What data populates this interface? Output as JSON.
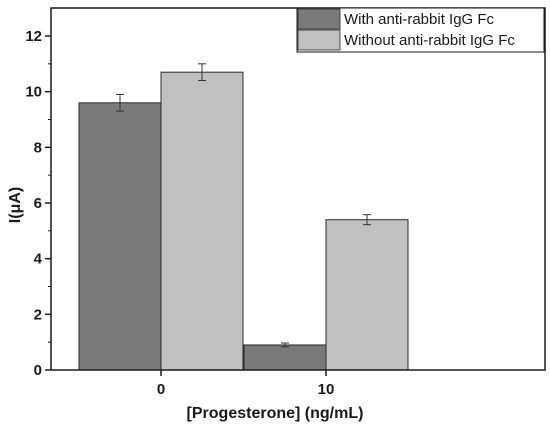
{
  "chart_data": {
    "type": "bar",
    "categories": [
      "0",
      "10"
    ],
    "series": [
      {
        "name": "With  anti-rabbit IgG Fc",
        "values": [
          9.6,
          0.9
        ],
        "errors": [
          0.3,
          0.07
        ],
        "color": "#7a7a7a"
      },
      {
        "name": "Without anti-rabbit IgG Fc",
        "values": [
          10.7,
          5.4
        ],
        "errors": [
          0.3,
          0.18
        ],
        "color": "#c0c0c0"
      }
    ],
    "xlabel": "[Progesterone] (ng/mL)",
    "ylabel": "I(μA)",
    "ylim": [
      0,
      12
    ],
    "yticks": [
      "0",
      "2",
      "4",
      "6",
      "8",
      "10",
      "12"
    ],
    "legend_position": "top-right",
    "grid": false
  }
}
